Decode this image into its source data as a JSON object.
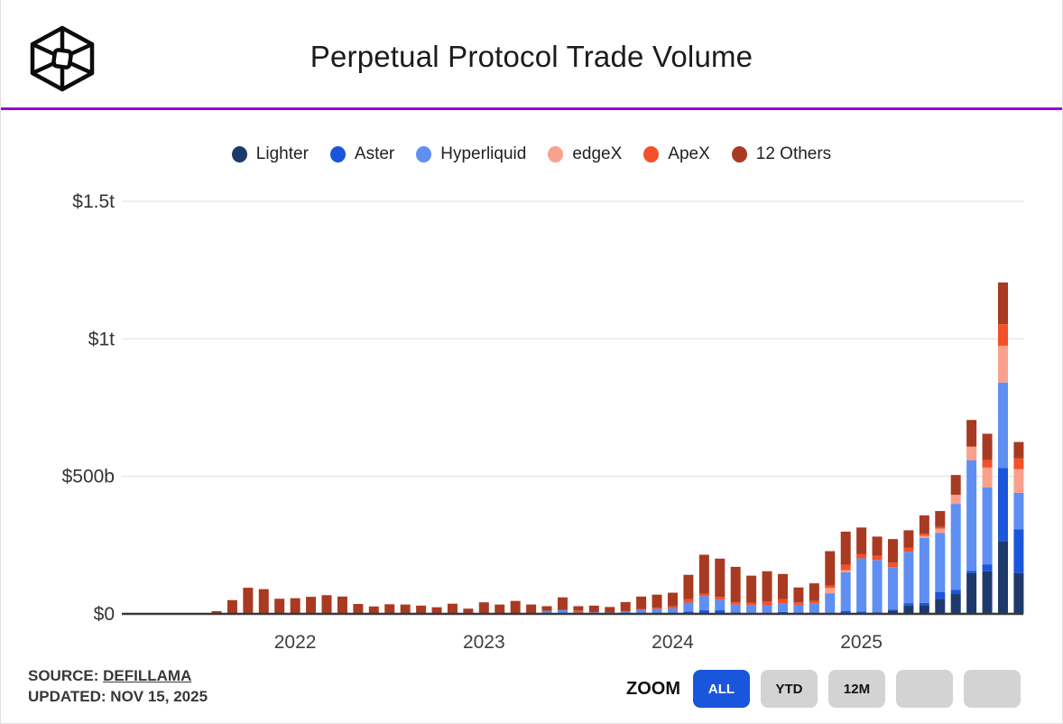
{
  "header": {
    "title": "Perpetual Protocol Trade Volume",
    "logo": "wireframe-cube-logo",
    "divider_color": "#9408dd"
  },
  "footer": {
    "source_label": "SOURCE:",
    "source_link": "DEFILLAMA",
    "updated": "UPDATED: NOV 15, 2025"
  },
  "zoom": {
    "label": "ZOOM",
    "buttons": [
      {
        "label": "ALL",
        "active": true
      },
      {
        "label": "YTD",
        "active": false
      },
      {
        "label": "12M",
        "active": false
      },
      {
        "label": "",
        "active": false
      },
      {
        "label": "",
        "active": false
      }
    ],
    "active_color": "#1a56db",
    "inactive_color": "#d3d3d3"
  },
  "chart_data": {
    "type": "bar",
    "stacked": true,
    "title": "Perpetual Protocol Trade Volume",
    "unit": "USD billions per month",
    "grid": true,
    "legend_position": "top-center",
    "ylim": [
      0,
      1550
    ],
    "y_ticks": [
      {
        "label": "$1.5t",
        "value": 1500
      },
      {
        "label": "$1t",
        "value": 1000
      },
      {
        "label": "$500b",
        "value": 500
      },
      {
        "label": "$0",
        "value": 0
      }
    ],
    "x_year_ticks": [
      {
        "label": "2022",
        "index": 5
      },
      {
        "label": "2023",
        "index": 17
      },
      {
        "label": "2024",
        "index": 29
      },
      {
        "label": "2025",
        "index": 41
      }
    ],
    "categories": [
      "2021-08",
      "2021-09",
      "2021-10",
      "2021-11",
      "2021-12",
      "2022-01",
      "2022-02",
      "2022-03",
      "2022-04",
      "2022-05",
      "2022-06",
      "2022-07",
      "2022-08",
      "2022-09",
      "2022-10",
      "2022-11",
      "2022-12",
      "2023-01",
      "2023-02",
      "2023-03",
      "2023-04",
      "2023-05",
      "2023-06",
      "2023-07",
      "2023-08",
      "2023-09",
      "2023-10",
      "2023-11",
      "2023-12",
      "2024-01",
      "2024-02",
      "2024-03",
      "2024-04",
      "2024-05",
      "2024-06",
      "2024-07",
      "2024-08",
      "2024-09",
      "2024-10",
      "2024-11",
      "2024-12",
      "2025-01",
      "2025-02",
      "2025-03",
      "2025-04",
      "2025-05",
      "2025-06",
      "2025-07",
      "2025-08",
      "2025-09",
      "2025-10",
      "2025-11"
    ],
    "series": [
      {
        "name": "Lighter",
        "color": "#1e3a6d",
        "values": [
          0,
          0,
          0,
          0,
          0,
          0,
          0,
          0,
          0,
          0,
          0,
          0,
          0,
          0,
          0,
          0,
          0,
          0,
          0,
          0,
          0,
          0,
          0,
          0,
          0,
          0,
          0,
          0,
          0,
          0,
          0,
          0,
          0,
          0,
          0,
          0,
          0,
          0,
          0,
          0,
          0,
          0,
          3,
          12,
          30,
          32,
          55,
          75,
          148,
          155,
          265,
          148
        ]
      },
      {
        "name": "Aster",
        "color": "#1a56db",
        "values": [
          0,
          0,
          0,
          0,
          0,
          0,
          0,
          0,
          0,
          0,
          0,
          0,
          0,
          0,
          0,
          0,
          0,
          0,
          0,
          0,
          0,
          0,
          0,
          0,
          0,
          0,
          0,
          0,
          0,
          0,
          8,
          13,
          13,
          5,
          4,
          0,
          7,
          0,
          0,
          3,
          11,
          8,
          3,
          4,
          9,
          8,
          25,
          12,
          8,
          25,
          265,
          160
        ]
      },
      {
        "name": "Hyperliquid",
        "color": "#5f8ff2",
        "values": [
          0,
          0,
          0,
          0,
          0,
          0,
          0,
          0,
          0,
          0,
          0,
          0,
          0,
          0,
          0,
          0,
          0,
          0,
          0,
          0,
          0,
          11,
          14,
          5,
          6,
          5,
          10,
          15,
          18,
          20,
          33,
          52,
          39,
          29,
          28,
          31,
          30,
          33,
          39,
          72,
          140,
          194,
          190,
          154,
          187,
          236,
          214,
          313,
          402,
          280,
          311,
          132
        ]
      },
      {
        "name": "edgeX",
        "color": "#f9a18c",
        "values": [
          0,
          0,
          0,
          0,
          0,
          0,
          0,
          0,
          0,
          0,
          0,
          0,
          0,
          0,
          0,
          0,
          0,
          0,
          0,
          0,
          0,
          0,
          0,
          0,
          0,
          0,
          0,
          0,
          0,
          0,
          0,
          0,
          0,
          0,
          0,
          0,
          0,
          0,
          0,
          19,
          8,
          0,
          0,
          0,
          0,
          8,
          16,
          33,
          50,
          72,
          134,
          86
        ]
      },
      {
        "name": "ApeX",
        "color": "#f4502a",
        "values": [
          0,
          0,
          0,
          0,
          0,
          0,
          0,
          0,
          0,
          0,
          0,
          0,
          0,
          0,
          0,
          0,
          0,
          0,
          0,
          0,
          0,
          0,
          0,
          7,
          0,
          0,
          0,
          3,
          4,
          7,
          13,
          9,
          10,
          8,
          8,
          15,
          17,
          9,
          8,
          9,
          20,
          15,
          15,
          16,
          14,
          8,
          6,
          0,
          0,
          27,
          78,
          39
        ]
      },
      {
        "name": "12 Others",
        "color": "#a93a22",
        "values": [
          10,
          50,
          95,
          90,
          55,
          57,
          62,
          68,
          63,
          36,
          27,
          35,
          34,
          30,
          24,
          37,
          19,
          42,
          34,
          47,
          34,
          17,
          46,
          16,
          24,
          20,
          33,
          45,
          48,
          50,
          88,
          141,
          139,
          129,
          99,
          109,
          91,
          54,
          64,
          125,
          120,
          97,
          70,
          86,
          64,
          66,
          58,
          72,
          97,
          96,
          152,
          60
        ]
      }
    ]
  }
}
